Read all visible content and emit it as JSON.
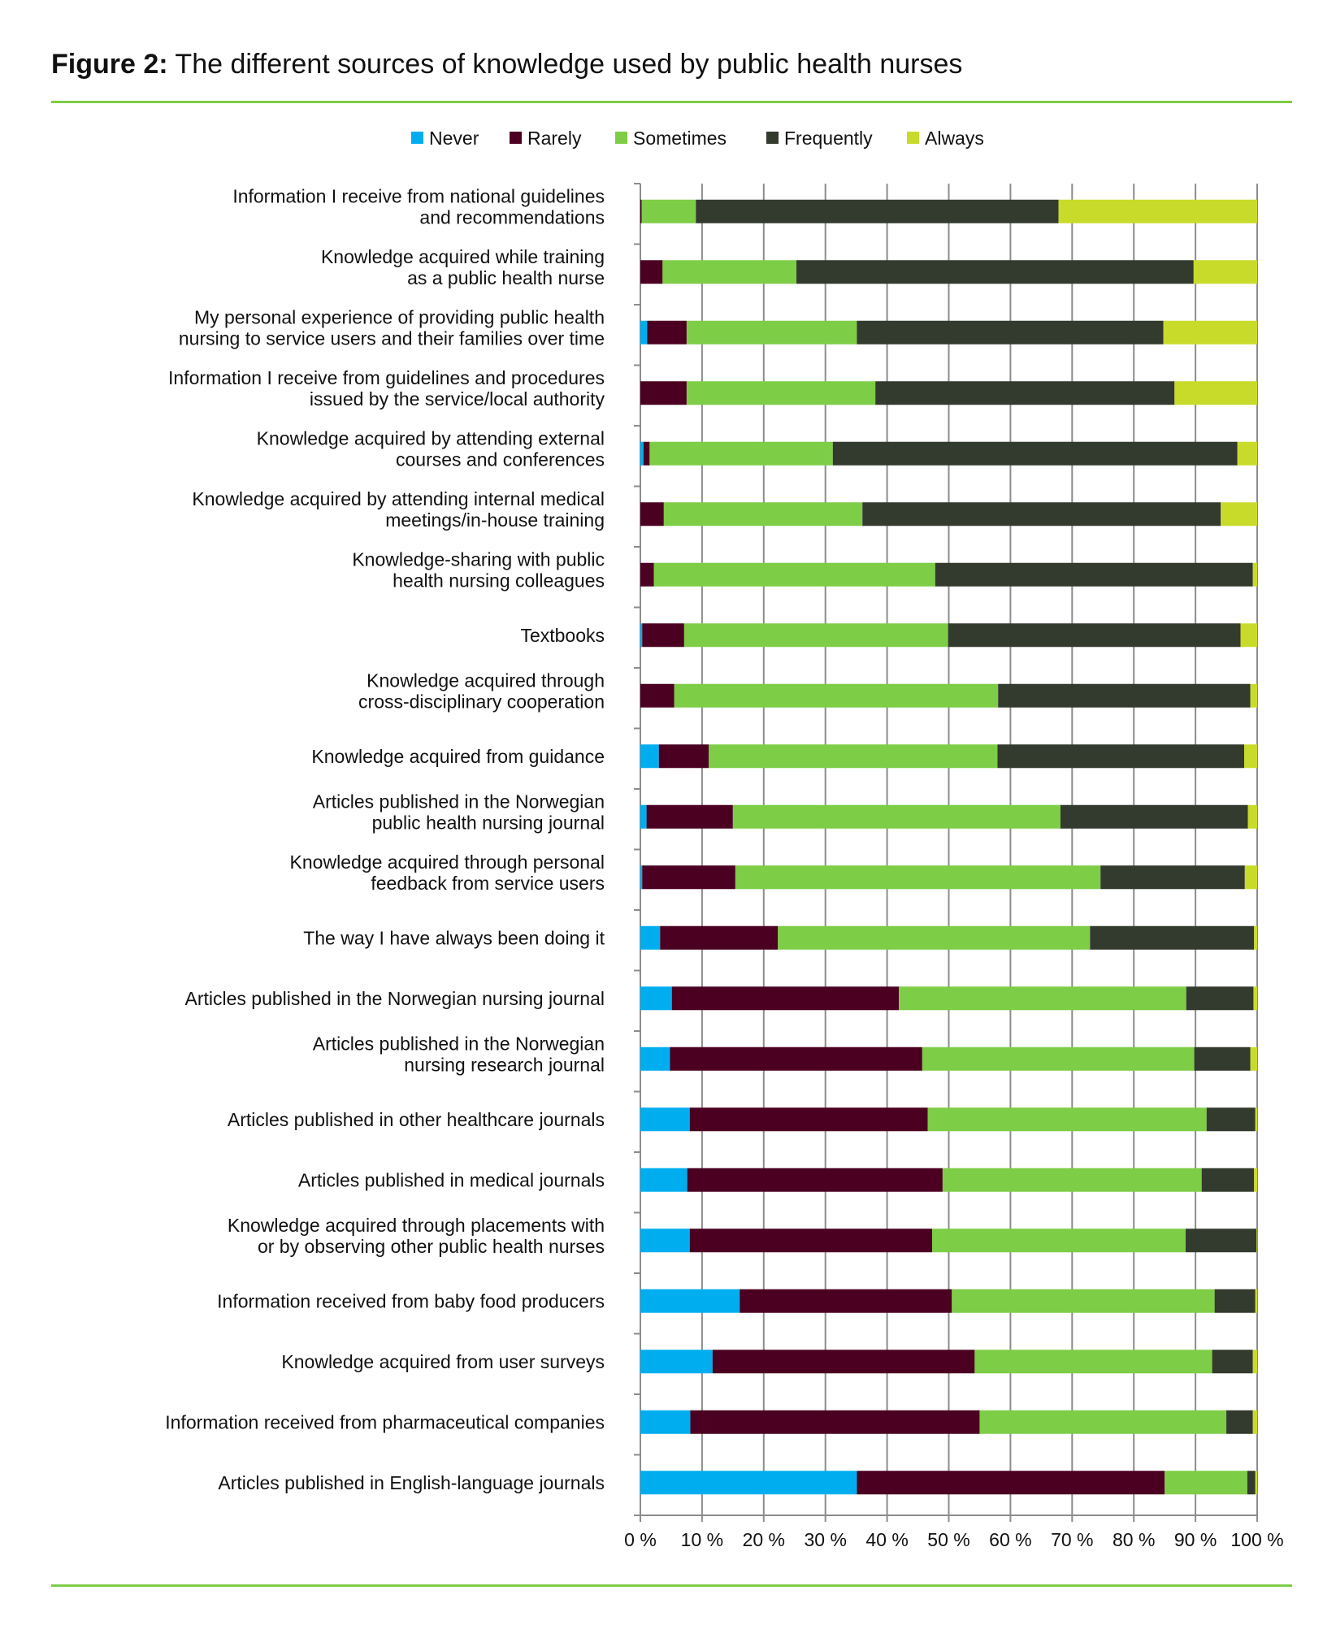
{
  "title": {
    "prefix": "Figure 2:",
    "text": "The different sources of knowledge used by public health nurses"
  },
  "colors": {
    "rule": "#7dcd46",
    "grid": "#8c8c8c"
  },
  "chart_data": {
    "type": "bar",
    "orientation": "horizontal",
    "stacked": "100%",
    "title": "The different sources of knowledge used by public health nurses",
    "xlabel": "",
    "ylabel": "",
    "xlim": [
      0,
      100
    ],
    "grid": true,
    "legend_position": "top",
    "x_ticks": [
      "0 %",
      "10 %",
      "20 %",
      "30 %",
      "40 %",
      "50 %",
      "60 %",
      "70 %",
      "80 %",
      "90 %",
      "100 %"
    ],
    "categories": [
      [
        "Information I receive from national guidelines",
        "and recommendations"
      ],
      [
        "Knowledge acquired while training",
        "as a public health nurse"
      ],
      [
        "My personal experience of providing public health",
        "nursing to service users and their families over time"
      ],
      [
        "Information I receive from guidelines and procedures",
        "issued by the service/local authority"
      ],
      [
        "Knowledge acquired by attending external",
        "courses and conferences"
      ],
      [
        "Knowledge acquired by attending internal medical",
        "meetings/in-house training"
      ],
      [
        "Knowledge-sharing with public",
        "health nursing colleagues"
      ],
      [
        "Textbooks"
      ],
      [
        "Knowledge acquired through",
        "cross-disciplinary cooperation"
      ],
      [
        "Knowledge acquired from guidance"
      ],
      [
        "Articles published in the Norwegian",
        "public health nursing journal"
      ],
      [
        "Knowledge acquired through personal",
        "feedback from service users"
      ],
      [
        "The way I have always been doing it"
      ],
      [
        "Articles published in the Norwegian nursing journal"
      ],
      [
        "Articles published in the Norwegian",
        "nursing research journal"
      ],
      [
        "Articles published in other healthcare journals"
      ],
      [
        "Articles published in medical journals"
      ],
      [
        "Knowledge acquired through placements with",
        "or by observing other public health nurses"
      ],
      [
        "Information received from baby food producers"
      ],
      [
        "Knowledge acquired from user surveys"
      ],
      [
        "Information received from pharmaceutical companies"
      ],
      [
        "Articles published in English-language journals"
      ]
    ],
    "series": [
      {
        "name": "Never",
        "color": "#00aeef",
        "values": [
          0,
          0,
          1.1,
          0,
          0.5,
          0,
          0,
          0.3,
          0,
          3.0,
          1.0,
          0.3,
          3.2,
          5.1,
          4.8,
          8.0,
          7.6,
          8.0,
          16.1,
          11.7,
          8.1,
          35.1
        ]
      },
      {
        "name": "Rarely",
        "color": "#4b0021",
        "values": [
          0.2,
          3.6,
          6.4,
          7.5,
          1.0,
          3.8,
          2.2,
          6.8,
          5.5,
          8.1,
          14.0,
          15.1,
          19.1,
          36.8,
          40.9,
          38.6,
          41.4,
          39.3,
          34.4,
          42.5,
          46.9,
          49.9
        ]
      },
      {
        "name": "Sometimes",
        "color": "#7dcd46",
        "values": [
          8.8,
          21.7,
          27.6,
          30.6,
          29.7,
          32.2,
          45.6,
          42.8,
          52.5,
          46.8,
          53.1,
          59.2,
          50.6,
          46.6,
          44.1,
          45.2,
          42.0,
          41.1,
          42.6,
          38.5,
          40.0,
          13.4
        ]
      },
      {
        "name": "Frequently",
        "color": "#333a2e",
        "values": [
          58.8,
          64.4,
          49.7,
          48.5,
          65.6,
          58.1,
          51.5,
          47.4,
          40.9,
          40.0,
          30.4,
          23.4,
          26.6,
          10.9,
          9.1,
          7.9,
          8.5,
          11.5,
          6.6,
          6.6,
          4.3,
          1.3
        ]
      },
      {
        "name": "Always",
        "color": "#c9db2a",
        "values": [
          32.2,
          10.3,
          15.2,
          13.4,
          3.2,
          5.9,
          0.7,
          2.7,
          1.1,
          2.1,
          1.5,
          2.0,
          0.5,
          0.6,
          1.1,
          0.3,
          0.5,
          0.1,
          0.3,
          0.7,
          0.7,
          0.3
        ]
      }
    ]
  }
}
